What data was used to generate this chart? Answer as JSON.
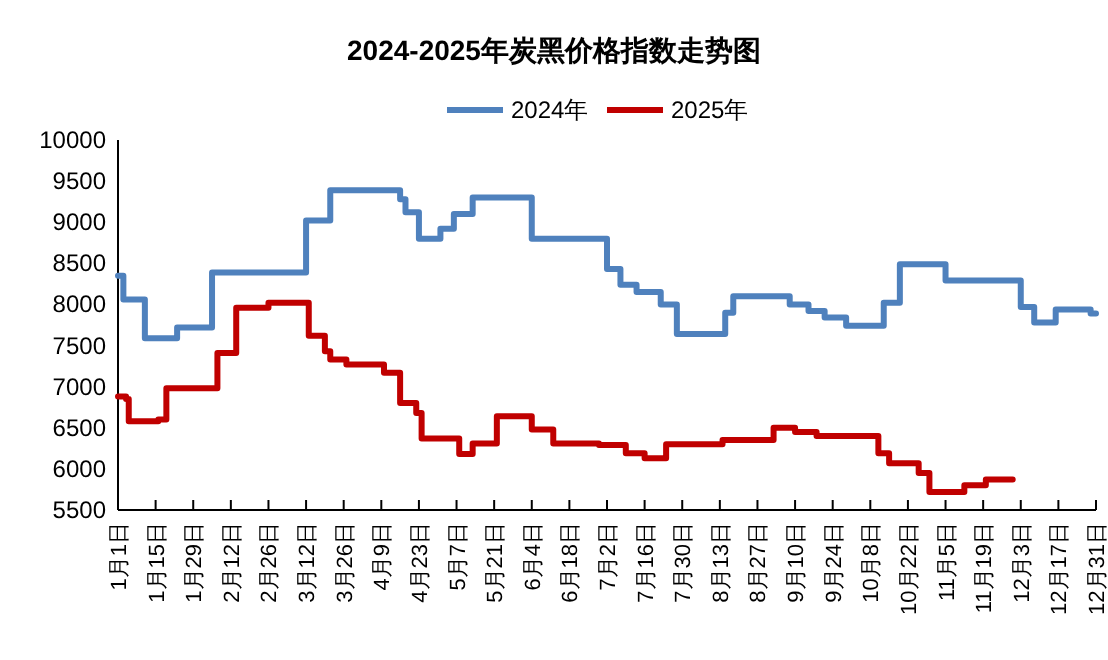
{
  "chart_data": {
    "type": "step",
    "title": "2024-2025年炭黑价格指数走势图",
    "legend": "top",
    "marker": "none",
    "line_style": "solid",
    "grid": false,
    "xlim": [
      "--01-01",
      "--12-31"
    ],
    "ylim": [
      5500,
      10000
    ],
    "yticks": [
      5500,
      6000,
      6500,
      7000,
      7500,
      8000,
      8500,
      9000,
      9500,
      10000
    ],
    "xticks": [
      {
        "value": "--01-01",
        "label": "1月1日"
      },
      {
        "value": "--01-15",
        "label": "1月15日"
      },
      {
        "value": "--01-29",
        "label": "1月29日"
      },
      {
        "value": "--02-12",
        "label": "2月12日"
      },
      {
        "value": "--02-26",
        "label": "2月26日"
      },
      {
        "value": "--03-12",
        "label": "3月12日"
      },
      {
        "value": "--03-26",
        "label": "3月26日"
      },
      {
        "value": "--04-09",
        "label": "4月9日"
      },
      {
        "value": "--04-23",
        "label": "4月23日"
      },
      {
        "value": "--05-07",
        "label": "5月7日"
      },
      {
        "value": "--05-21",
        "label": "5月21日"
      },
      {
        "value": "--06-04",
        "label": "6月4日"
      },
      {
        "value": "--06-18",
        "label": "6月18日"
      },
      {
        "value": "--07-02",
        "label": "7月2日"
      },
      {
        "value": "--07-16",
        "label": "7月16日"
      },
      {
        "value": "--07-30",
        "label": "7月30日"
      },
      {
        "value": "--08-13",
        "label": "8月13日"
      },
      {
        "value": "--08-27",
        "label": "8月27日"
      },
      {
        "value": "--09-10",
        "label": "9月10日"
      },
      {
        "value": "--09-24",
        "label": "9月24日"
      },
      {
        "value": "--10-08",
        "label": "10月8日"
      },
      {
        "value": "--10-22",
        "label": "10月22日"
      },
      {
        "value": "--11-05",
        "label": "11月5日"
      },
      {
        "value": "--11-19",
        "label": "11月19日"
      },
      {
        "value": "--12-03",
        "label": "12月3日"
      },
      {
        "value": "--12-17",
        "label": "12月17日"
      },
      {
        "value": "--12-31",
        "label": "12月31日"
      }
    ],
    "series": [
      {
        "name": "2024年",
        "color": "#4f81bd",
        "x": [
          "--01-01",
          "--01-03",
          "--01-11",
          "--01-23",
          "--02-05",
          "--03-12",
          "--03-21",
          "--04-16",
          "--04-18",
          "--04-23",
          "--05-01",
          "--05-06",
          "--05-13",
          "--06-04",
          "--07-02",
          "--07-07",
          "--07-13",
          "--07-22",
          "--07-28",
          "--08-15",
          "--08-18",
          "--09-08",
          "--09-15",
          "--09-21",
          "--09-29",
          "--10-13",
          "--10-19",
          "--11-05",
          "--12-03",
          "--12-08",
          "--12-16",
          "--12-29",
          "--12-31"
        ],
        "values": [
          8350,
          8060,
          7590,
          7720,
          8390,
          9020,
          9390,
          9280,
          9120,
          8800,
          8920,
          9100,
          9300,
          8800,
          8430,
          8240,
          8150,
          8000,
          7640,
          7900,
          8100,
          8000,
          7920,
          7840,
          7740,
          8020,
          8490,
          8290,
          7970,
          7780,
          7940,
          7890,
          7890
        ]
      },
      {
        "name": "2025年",
        "color": "#c00000",
        "x": [
          "--01-01",
          "--01-04",
          "--01-05",
          "--01-16",
          "--01-19",
          "--02-07",
          "--02-14",
          "--02-26",
          "--03-13",
          "--03-19",
          "--03-21",
          "--03-27",
          "--04-10",
          "--04-16",
          "--04-22",
          "--04-24",
          "--05-08",
          "--05-13",
          "--05-22",
          "--06-04",
          "--06-12",
          "--06-29",
          "--07-09",
          "--07-16",
          "--07-24",
          "--08-14",
          "--09-02",
          "--09-10",
          "--09-18",
          "--10-11",
          "--10-15",
          "--10-26",
          "--10-30",
          "--11-12",
          "--11-20",
          "--11-30"
        ],
        "values": [
          6880,
          6850,
          6580,
          6600,
          6980,
          7410,
          7960,
          8020,
          7620,
          7430,
          7330,
          7270,
          7170,
          6800,
          6680,
          6370,
          6180,
          6310,
          6640,
          6480,
          6310,
          6290,
          6190,
          6130,
          6300,
          6350,
          6500,
          6450,
          6400,
          6190,
          6070,
          5950,
          5720,
          5800,
          5870,
          5870
        ]
      }
    ]
  }
}
